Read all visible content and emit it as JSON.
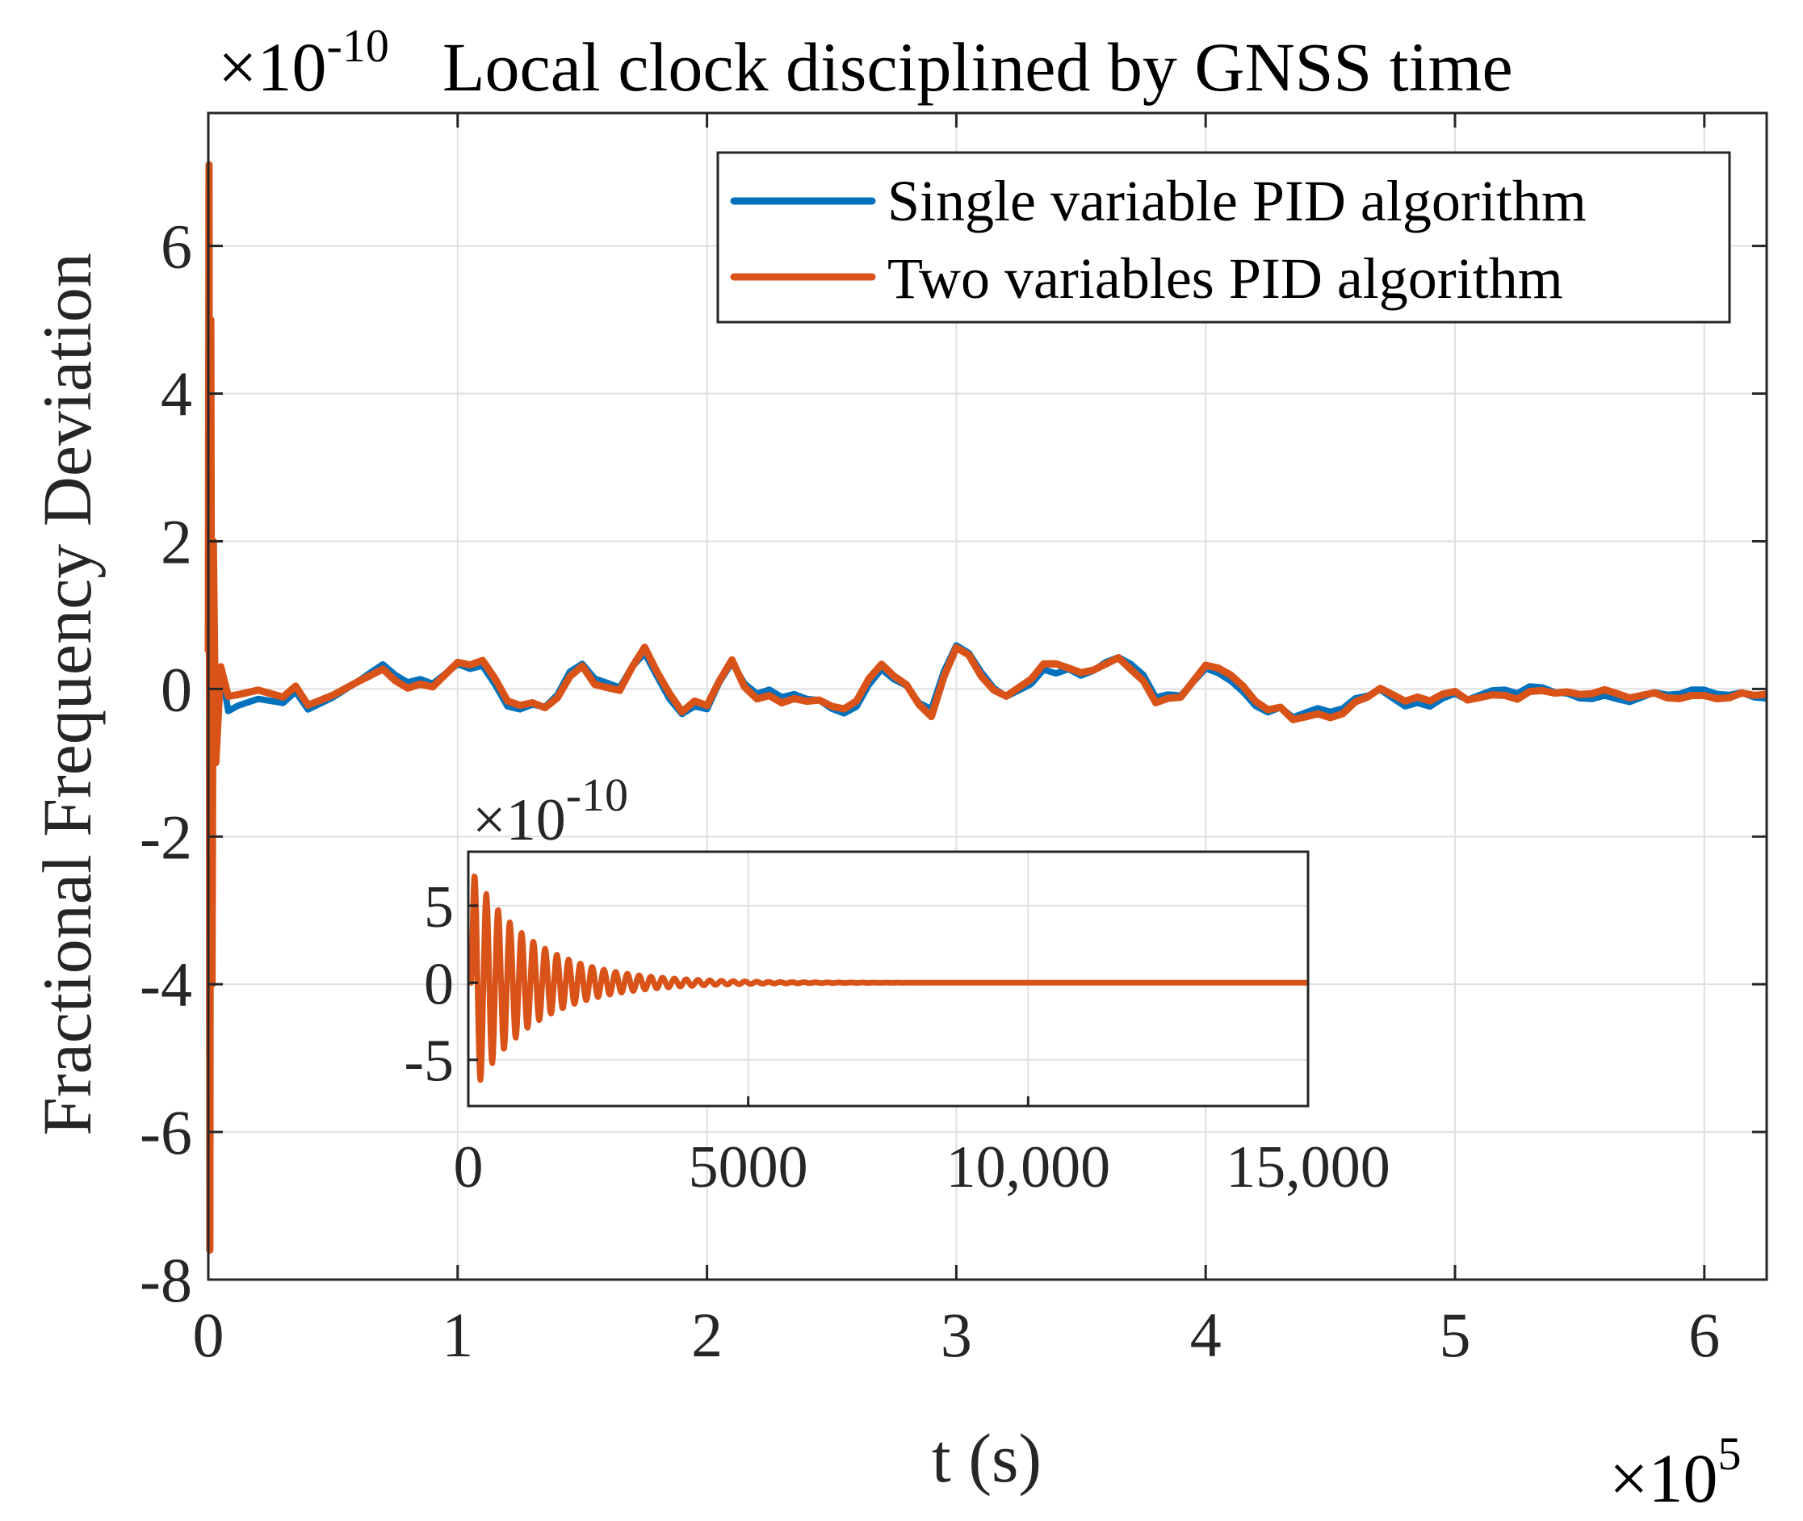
{
  "colors": {
    "single": "#0072BD",
    "two": "#D95319",
    "grid": "#dfdfdf",
    "axis": "#262626"
  },
  "chart_data": [
    {
      "type": "line",
      "title": "Local clock disciplined by GNSS time",
      "y_exponent_label": "×10",
      "y_exponent_power": "-10",
      "x_exponent_label": "×10",
      "x_exponent_power": "5",
      "xlabel": "t (s)",
      "ylabel": "Fractional Frequency Deviation",
      "xlim": [
        0,
        6.25
      ],
      "ylim": [
        -8,
        7.8
      ],
      "xticks": [
        0,
        1,
        2,
        3,
        4,
        5,
        6
      ],
      "xtick_labels": [
        "0",
        "1",
        "2",
        "3",
        "4",
        "5",
        "6"
      ],
      "yticks": [
        -8,
        -6,
        -4,
        -2,
        0,
        2,
        4,
        6
      ],
      "ytick_labels": [
        "-8",
        "-6",
        "-4",
        "-2",
        "0",
        "2",
        "4",
        "6"
      ],
      "grid": true,
      "legend_position": "top-right",
      "series": [
        {
          "name": "Single variable PID algorithm",
          "key": "single",
          "x": [
            0,
            0.003,
            0.006,
            0.01,
            0.015,
            0.02,
            0.03,
            0.05,
            0.08,
            0.12,
            0.2,
            0.3,
            0.35,
            0.4,
            0.5,
            0.6,
            0.65,
            0.7,
            0.75,
            0.8,
            0.85,
            0.9,
            0.95,
            1.0,
            1.05,
            1.1,
            1.15,
            1.2,
            1.25,
            1.3,
            1.35,
            1.4,
            1.45,
            1.5,
            1.55,
            1.6,
            1.65,
            1.7,
            1.75,
            1.8,
            1.85,
            1.9,
            1.95,
            2.0,
            2.05,
            2.1,
            2.15,
            2.2,
            2.25,
            2.3,
            2.35,
            2.4,
            2.45,
            2.5,
            2.55,
            2.6,
            2.65,
            2.7,
            2.75,
            2.8,
            2.85,
            2.9,
            2.95,
            3.0,
            3.05,
            3.1,
            3.15,
            3.2,
            3.25,
            3.3,
            3.35,
            3.4,
            3.45,
            3.5,
            3.55,
            3.6,
            3.65,
            3.7,
            3.75,
            3.8,
            3.85,
            3.9,
            3.95,
            4.0,
            4.05,
            4.1,
            4.15,
            4.2,
            4.25,
            4.3,
            4.35,
            4.4,
            4.45,
            4.5,
            4.55,
            4.6,
            4.65,
            4.7,
            4.75,
            4.8,
            4.85,
            4.9,
            4.95,
            5.0,
            5.05,
            5.1,
            5.15,
            5.2,
            5.25,
            5.3,
            5.35,
            5.4,
            5.45,
            5.5,
            5.55,
            5.6,
            5.65,
            5.7,
            5.75,
            5.8,
            5.85,
            5.9,
            5.95,
            6.0,
            6.05,
            6.1,
            6.15,
            6.2,
            6.25
          ],
          "values": [
            0.5,
            6.5,
            -7,
            4.5,
            -3.5,
            1.8,
            -0.8,
            0.3,
            -0.3,
            -0.2,
            -0.1,
            -0.15,
            0.0,
            -0.25,
            -0.1,
            0.1,
            0.2,
            0.3,
            0.15,
            0.05,
            0.1,
            0.05,
            0.2,
            0.35,
            0.3,
            0.35,
            0.1,
            -0.2,
            -0.25,
            -0.2,
            -0.25,
            -0.1,
            0.2,
            0.3,
            0.1,
            0.05,
            0.0,
            0.3,
            0.5,
            0.2,
            -0.1,
            -0.3,
            -0.2,
            -0.25,
            0.1,
            0.35,
            0.05,
            -0.1,
            -0.05,
            -0.15,
            -0.1,
            -0.15,
            -0.15,
            -0.25,
            -0.3,
            -0.2,
            0.1,
            0.3,
            0.15,
            0.05,
            -0.2,
            -0.3,
            0.2,
            0.55,
            0.45,
            0.2,
            0.0,
            -0.1,
            0.0,
            0.1,
            0.3,
            0.25,
            0.3,
            0.2,
            0.25,
            0.35,
            0.4,
            0.3,
            0.15,
            -0.15,
            -0.1,
            -0.1,
            0.1,
            0.3,
            0.25,
            0.15,
            0.0,
            -0.2,
            -0.3,
            -0.25,
            -0.4,
            -0.35,
            -0.3,
            -0.35,
            -0.3,
            -0.15,
            -0.1,
            0.0,
            -0.1,
            -0.2,
            -0.15,
            -0.2,
            -0.1,
            -0.05,
            -0.15,
            -0.1,
            -0.05,
            -0.05,
            -0.1,
            0.0,
            0.0,
            -0.05,
            -0.05,
            -0.1,
            -0.1,
            -0.05,
            -0.1,
            -0.15,
            -0.1,
            -0.05,
            -0.1,
            -0.1,
            -0.05,
            -0.05,
            -0.1,
            -0.1,
            -0.05,
            -0.1,
            -0.1
          ]
        },
        {
          "name": "Two variables PID algorithm",
          "key": "two",
          "x": [
            0,
            0.003,
            0.006,
            0.01,
            0.015,
            0.02,
            0.03,
            0.05,
            0.08,
            0.12,
            0.2,
            0.3,
            0.35,
            0.4,
            0.5,
            0.6,
            0.65,
            0.7,
            0.75,
            0.8,
            0.85,
            0.9,
            0.95,
            1.0,
            1.05,
            1.1,
            1.15,
            1.2,
            1.25,
            1.3,
            1.35,
            1.4,
            1.45,
            1.5,
            1.55,
            1.6,
            1.65,
            1.7,
            1.75,
            1.8,
            1.85,
            1.9,
            1.95,
            2.0,
            2.05,
            2.1,
            2.15,
            2.2,
            2.25,
            2.3,
            2.35,
            2.4,
            2.45,
            2.5,
            2.55,
            2.6,
            2.65,
            2.7,
            2.75,
            2.8,
            2.85,
            2.9,
            2.95,
            3.0,
            3.05,
            3.1,
            3.15,
            3.2,
            3.25,
            3.3,
            3.35,
            3.4,
            3.45,
            3.5,
            3.55,
            3.6,
            3.65,
            3.7,
            3.75,
            3.8,
            3.85,
            3.9,
            3.95,
            4.0,
            4.05,
            4.1,
            4.15,
            4.2,
            4.25,
            4.3,
            4.35,
            4.4,
            4.45,
            4.5,
            4.55,
            4.6,
            4.65,
            4.7,
            4.75,
            4.8,
            4.85,
            4.9,
            4.95,
            5.0,
            5.05,
            5.1,
            5.15,
            5.2,
            5.25,
            5.3,
            5.35,
            5.4,
            5.45,
            5.5,
            5.55,
            5.6,
            5.65,
            5.7,
            5.75,
            5.8,
            5.85,
            5.9,
            5.95,
            6.0,
            6.05,
            6.1,
            6.15,
            6.2,
            6.25
          ],
          "values": [
            0.5,
            7.1,
            -7.6,
            5.0,
            -4.0,
            2.0,
            -1.0,
            0.3,
            -0.1,
            -0.1,
            -0.05,
            -0.15,
            0.0,
            -0.25,
            -0.1,
            0.1,
            0.2,
            0.3,
            0.15,
            0.05,
            0.1,
            0.05,
            0.2,
            0.35,
            0.3,
            0.35,
            0.1,
            -0.2,
            -0.25,
            -0.2,
            -0.25,
            -0.1,
            0.2,
            0.35,
            0.1,
            0.05,
            0.0,
            0.3,
            0.55,
            0.2,
            -0.1,
            -0.35,
            -0.2,
            -0.25,
            0.1,
            0.4,
            0.05,
            -0.1,
            -0.05,
            -0.15,
            -0.1,
            -0.15,
            -0.15,
            -0.25,
            -0.3,
            -0.2,
            0.1,
            0.3,
            0.15,
            0.05,
            -0.2,
            -0.35,
            0.2,
            0.6,
            0.5,
            0.2,
            0.0,
            -0.1,
            0.0,
            0.1,
            0.3,
            0.3,
            0.25,
            0.2,
            0.25,
            0.35,
            0.45,
            0.3,
            0.15,
            -0.15,
            -0.1,
            -0.1,
            0.1,
            0.3,
            0.25,
            0.15,
            0.0,
            -0.2,
            -0.3,
            -0.25,
            -0.4,
            -0.35,
            -0.3,
            -0.35,
            -0.3,
            -0.15,
            -0.1,
            0.0,
            -0.1,
            -0.2,
            -0.15,
            -0.2,
            -0.1,
            -0.05,
            -0.15,
            -0.1,
            -0.05,
            -0.05,
            -0.1,
            0.0,
            0.0,
            -0.05,
            -0.05,
            -0.1,
            -0.1,
            -0.05,
            -0.1,
            -0.15,
            -0.1,
            -0.05,
            -0.1,
            -0.1,
            -0.05,
            -0.05,
            -0.1,
            -0.1,
            -0.05,
            -0.1,
            -0.1
          ]
        }
      ]
    },
    {
      "type": "line",
      "title": "",
      "role": "inset",
      "y_exponent_label": "×10",
      "y_exponent_power": "-10",
      "xlim": [
        0,
        15000
      ],
      "ylim": [
        -8,
        8.5
      ],
      "xticks": [
        0,
        5000,
        10000,
        15000
      ],
      "xtick_labels": [
        "0",
        "5000",
        "10,000",
        "15,000"
      ],
      "yticks": [
        -5,
        0,
        5
      ],
      "ytick_labels": [
        "-5",
        "0",
        "5"
      ],
      "grid": true,
      "decay_model": {
        "amplitude": 7.3,
        "tau_s": 1100,
        "period_s": 210
      },
      "series": [
        {
          "name": "Single variable PID algorithm",
          "key": "single"
        },
        {
          "name": "Two variables PID algorithm",
          "key": "two"
        }
      ]
    }
  ]
}
